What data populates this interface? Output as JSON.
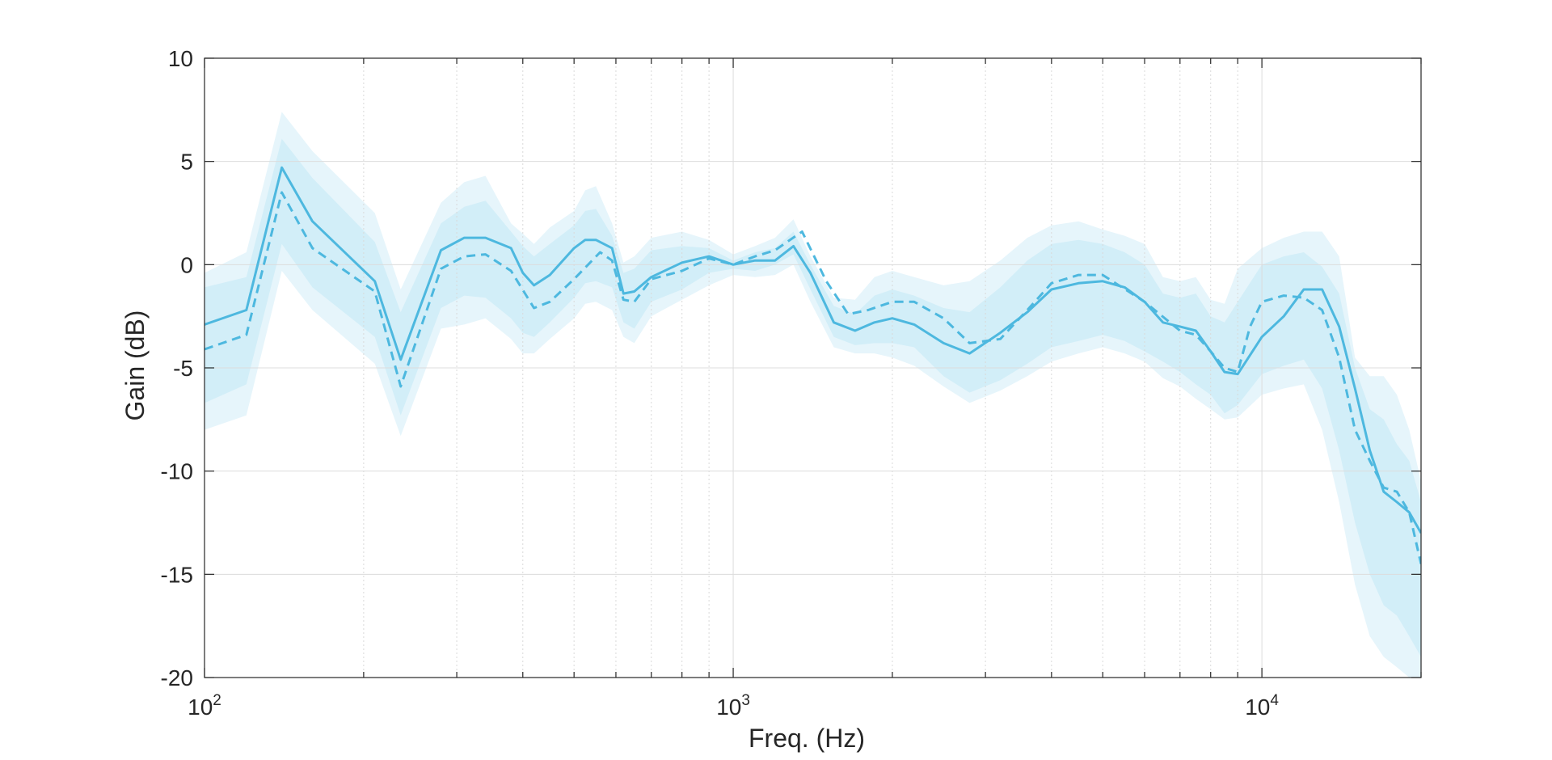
{
  "chart_data": {
    "type": "line",
    "title": "",
    "xlabel": "Freq. (Hz)",
    "ylabel": "Gain (dB)",
    "xscale": "log",
    "xlim": [
      100,
      20000
    ],
    "ylim": [
      -20,
      10
    ],
    "grid": true,
    "legend": "none",
    "colors": {
      "line": "#4db8df",
      "band_outer": "#e6f5fb",
      "band_inner": "#d2eef8",
      "grid": "#dcdcdc",
      "axis": "#262626"
    },
    "xticks": [
      {
        "value": 100,
        "base": "10",
        "exp": "2"
      },
      {
        "value": 1000,
        "base": "10",
        "exp": "3"
      },
      {
        "value": 10000,
        "base": "10",
        "exp": "4"
      }
    ],
    "yticks": [
      {
        "value": 10,
        "label": "10"
      },
      {
        "value": 5,
        "label": "5"
      },
      {
        "value": 0,
        "label": "0"
      },
      {
        "value": -5,
        "label": "-5"
      },
      {
        "value": -10,
        "label": "-10"
      },
      {
        "value": -15,
        "label": "-15"
      },
      {
        "value": -20,
        "label": "-20"
      }
    ],
    "series": [
      {
        "style": "solid",
        "x": [
          100,
          120,
          140,
          160,
          210,
          235,
          280,
          310,
          340,
          380,
          400,
          420,
          450,
          500,
          525,
          550,
          590,
          620,
          650,
          700,
          800,
          900,
          1000,
          1100,
          1200,
          1300,
          1400,
          1550,
          1700,
          1850,
          2000,
          2200,
          2500,
          2800,
          3200,
          3600,
          4000,
          4500,
          5000,
          5500,
          6000,
          6500,
          7000,
          7500,
          8000,
          8500,
          9000,
          10000,
          11000,
          12000,
          13000,
          14000,
          15000,
          16000,
          17000,
          18000,
          19000,
          20000
        ],
        "y": [
          -2.9,
          -2.2,
          4.7,
          2.1,
          -0.8,
          -4.6,
          0.7,
          1.3,
          1.3,
          0.8,
          -0.4,
          -1.0,
          -0.5,
          0.8,
          1.2,
          1.2,
          0.8,
          -1.4,
          -1.3,
          -0.6,
          0.1,
          0.4,
          0.0,
          0.2,
          0.2,
          0.9,
          -0.4,
          -2.8,
          -3.2,
          -2.8,
          -2.6,
          -2.9,
          -3.8,
          -4.3,
          -3.3,
          -2.3,
          -1.2,
          -0.9,
          -0.8,
          -1.1,
          -1.8,
          -2.8,
          -3.0,
          -3.2,
          -4.2,
          -5.2,
          -5.3,
          -3.5,
          -2.5,
          -1.2,
          -1.2,
          -3.0,
          -6.0,
          -9.0,
          -11.0,
          -11.5,
          -12.0,
          -13.0
        ]
      },
      {
        "style": "dashed",
        "x": [
          100,
          120,
          140,
          160,
          210,
          235,
          280,
          310,
          340,
          380,
          420,
          450,
          500,
          560,
          590,
          620,
          650,
          700,
          800,
          900,
          1000,
          1100,
          1200,
          1350,
          1500,
          1650,
          1800,
          2000,
          2200,
          2500,
          2800,
          3200,
          3600,
          4000,
          4500,
          5000,
          6000,
          7000,
          7500,
          8000,
          8500,
          9000,
          9500,
          10000,
          11000,
          12000,
          13000,
          14000,
          15000,
          16000,
          17000,
          18000,
          19000,
          20000
        ],
        "y": [
          -4.1,
          -3.4,
          3.5,
          0.8,
          -1.3,
          -5.9,
          -0.2,
          0.4,
          0.5,
          -0.3,
          -2.1,
          -1.8,
          -0.7,
          0.6,
          0.2,
          -1.7,
          -1.8,
          -0.7,
          -0.3,
          0.3,
          0.0,
          0.4,
          0.7,
          1.6,
          -0.8,
          -2.4,
          -2.2,
          -1.8,
          -1.8,
          -2.6,
          -3.8,
          -3.6,
          -2.2,
          -0.9,
          -0.5,
          -0.5,
          -1.8,
          -3.2,
          -3.4,
          -4.2,
          -5.0,
          -5.2,
          -3.0,
          -1.8,
          -1.5,
          -1.6,
          -2.2,
          -4.5,
          -8.0,
          -9.5,
          -10.8,
          -11.0,
          -12.0,
          -14.5
        ]
      }
    ],
    "bands": {
      "x": [
        100,
        120,
        140,
        160,
        210,
        235,
        280,
        310,
        340,
        380,
        400,
        420,
        450,
        500,
        525,
        550,
        590,
        620,
        650,
        700,
        800,
        900,
        1000,
        1100,
        1200,
        1300,
        1400,
        1550,
        1700,
        1850,
        2000,
        2200,
        2500,
        2800,
        3200,
        3600,
        4000,
        4500,
        5000,
        5500,
        6000,
        6500,
        7000,
        7500,
        8000,
        8500,
        9000,
        10000,
        11000,
        12000,
        13000,
        14000,
        15000,
        16000,
        17000,
        18000,
        19000,
        20000
      ],
      "outer_upper": [
        -0.4,
        0.6,
        7.4,
        5.5,
        2.5,
        -1.2,
        3.0,
        4.0,
        4.3,
        2.0,
        1.5,
        1.0,
        1.8,
        2.6,
        3.6,
        3.8,
        2.0,
        0.1,
        0.4,
        1.3,
        1.6,
        1.2,
        0.5,
        0.9,
        1.3,
        2.2,
        0.4,
        -1.6,
        -1.7,
        -0.6,
        -0.3,
        -0.6,
        -1.0,
        -0.8,
        0.2,
        1.3,
        1.9,
        2.1,
        1.7,
        1.4,
        1.0,
        -0.6,
        -0.8,
        -0.6,
        -1.7,
        -1.9,
        -0.2,
        0.8,
        1.3,
        1.6,
        1.6,
        0.4,
        -4.5,
        -5.4,
        -5.4,
        -6.3,
        -8.0,
        -10.5
      ],
      "inner_upper": [
        -1.1,
        -0.6,
        6.1,
        4.2,
        1.1,
        -2.3,
        2.0,
        2.8,
        3.1,
        1.6,
        0.9,
        0.4,
        1.0,
        1.9,
        2.6,
        2.7,
        1.4,
        -0.4,
        -0.2,
        0.7,
        0.9,
        0.8,
        0.2,
        0.6,
        0.8,
        1.6,
        0.0,
        -2.0,
        -2.4,
        -1.5,
        -1.2,
        -1.5,
        -2.1,
        -2.3,
        -1.1,
        0.2,
        1.0,
        1.2,
        1.0,
        0.6,
        0.0,
        -1.4,
        -1.6,
        -1.4,
        -2.5,
        -2.8,
        -1.8,
        0.0,
        0.4,
        0.6,
        -0.1,
        -1.4,
        -5.0,
        -7.0,
        -7.5,
        -8.7,
        -9.5,
        -11.5
      ],
      "inner_lower": [
        -6.7,
        -5.8,
        1.0,
        -1.1,
        -3.5,
        -7.3,
        -2.1,
        -1.5,
        -1.6,
        -2.6,
        -3.3,
        -3.5,
        -2.8,
        -1.6,
        -0.9,
        -0.8,
        -1.1,
        -2.8,
        -3.1,
        -1.8,
        -1.2,
        -0.4,
        -0.2,
        -0.3,
        0.0,
        0.5,
        -1.2,
        -3.5,
        -3.9,
        -3.8,
        -3.8,
        -4.0,
        -5.4,
        -6.2,
        -5.6,
        -4.8,
        -4.0,
        -3.7,
        -3.4,
        -3.7,
        -4.2,
        -4.7,
        -5.2,
        -5.8,
        -6.3,
        -7.2,
        -6.8,
        -5.3,
        -4.9,
        -4.6,
        -6.0,
        -9.0,
        -12.5,
        -15.0,
        -16.5,
        -17.0,
        -18.0,
        -19.0
      ],
      "outer_lower": [
        -8.0,
        -7.3,
        -0.3,
        -2.2,
        -4.8,
        -8.3,
        -3.1,
        -2.9,
        -2.6,
        -3.6,
        -4.3,
        -4.3,
        -3.6,
        -2.6,
        -1.9,
        -1.8,
        -2.2,
        -3.5,
        -3.8,
        -2.5,
        -1.7,
        -1.0,
        -0.5,
        -0.6,
        -0.5,
        0.0,
        -1.8,
        -4.0,
        -4.3,
        -4.3,
        -4.5,
        -4.9,
        -5.9,
        -6.7,
        -6.1,
        -5.4,
        -4.7,
        -4.3,
        -4.0,
        -4.3,
        -4.7,
        -5.5,
        -5.9,
        -6.5,
        -7.0,
        -7.5,
        -7.4,
        -6.3,
        -6.0,
        -5.8,
        -8.0,
        -11.5,
        -15.5,
        -18.0,
        -19.0,
        -19.5,
        -20.0,
        -20.0
      ]
    }
  }
}
